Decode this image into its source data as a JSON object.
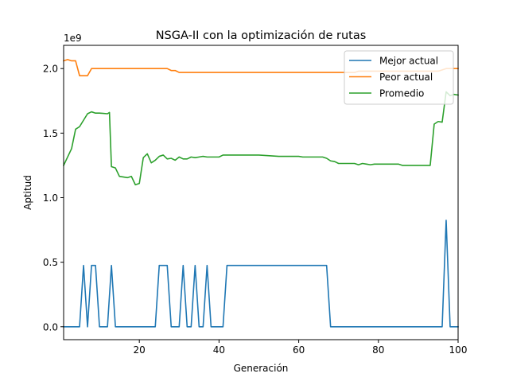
{
  "chart_data": {
    "type": "line",
    "title": "NSGA-II con la optimización de rutas",
    "xlabel": "Generación",
    "ylabel": "Aptitud",
    "offset_text": "1e9",
    "xlim": [
      1,
      100
    ],
    "ylim": [
      -0.1,
      2.18
    ],
    "x_ticks": [
      20,
      40,
      60,
      80,
      100
    ],
    "x_tick_labels": [
      "20",
      "40",
      "60",
      "80",
      "100"
    ],
    "y_ticks": [
      0.0,
      0.5,
      1.0,
      1.5,
      2.0
    ],
    "y_tick_labels": [
      "0.0",
      "0.5",
      "1.0",
      "1.5",
      "2.0"
    ],
    "grid": false,
    "legend_position": "upper-right",
    "series": [
      {
        "name": "Mejor actual",
        "color": "#1f77b4",
        "points": [
          [
            1,
            0
          ],
          [
            5,
            0
          ],
          [
            6,
            0.475
          ],
          [
            7,
            0
          ],
          [
            8,
            0.475
          ],
          [
            9,
            0.475
          ],
          [
            10,
            0
          ],
          [
            12,
            0
          ],
          [
            13,
            0.475
          ],
          [
            14,
            0
          ],
          [
            19,
            0
          ],
          [
            20,
            0
          ],
          [
            24,
            0
          ],
          [
            25,
            0.475
          ],
          [
            27,
            0.475
          ],
          [
            28,
            0
          ],
          [
            30,
            0
          ],
          [
            31,
            0.475
          ],
          [
            32,
            0
          ],
          [
            33,
            0
          ],
          [
            34,
            0.475
          ],
          [
            35,
            0
          ],
          [
            36,
            0
          ],
          [
            37,
            0.475
          ],
          [
            38,
            0
          ],
          [
            41,
            0
          ],
          [
            42,
            0.475
          ],
          [
            67,
            0.475
          ],
          [
            68,
            0
          ],
          [
            94,
            0
          ],
          [
            96,
            0
          ],
          [
            97,
            0.825
          ],
          [
            98,
            0
          ],
          [
            100,
            0
          ]
        ]
      },
      {
        "name": "Peor actual",
        "color": "#ff7f0e",
        "points": [
          [
            1,
            2.06
          ],
          [
            2,
            2.07
          ],
          [
            3,
            2.06
          ],
          [
            4,
            2.06
          ],
          [
            5,
            1.945
          ],
          [
            7,
            1.945
          ],
          [
            8,
            2.0
          ],
          [
            27,
            2.0
          ],
          [
            28,
            1.985
          ],
          [
            29,
            1.985
          ],
          [
            30,
            1.97
          ],
          [
            74,
            1.97
          ],
          [
            75,
            1.98
          ],
          [
            80,
            1.98
          ],
          [
            90,
            1.98
          ],
          [
            95,
            1.98
          ],
          [
            96,
            1.99
          ],
          [
            97,
            2.0
          ],
          [
            100,
            2.0
          ]
        ]
      },
      {
        "name": "Promedio",
        "color": "#2ca02c",
        "points": [
          [
            1,
            1.25
          ],
          [
            3,
            1.38
          ],
          [
            4,
            1.53
          ],
          [
            5,
            1.55
          ],
          [
            6,
            1.6
          ],
          [
            7,
            1.65
          ],
          [
            8,
            1.665
          ],
          [
            9,
            1.655
          ],
          [
            10,
            1.655
          ],
          [
            12,
            1.65
          ],
          [
            12.5,
            1.66
          ],
          [
            13,
            1.24
          ],
          [
            14,
            1.23
          ],
          [
            15,
            1.165
          ],
          [
            17,
            1.155
          ],
          [
            18,
            1.165
          ],
          [
            19,
            1.1
          ],
          [
            20,
            1.11
          ],
          [
            21,
            1.31
          ],
          [
            22,
            1.34
          ],
          [
            23,
            1.27
          ],
          [
            24,
            1.29
          ],
          [
            25,
            1.32
          ],
          [
            26,
            1.33
          ],
          [
            27,
            1.3
          ],
          [
            28,
            1.305
          ],
          [
            29,
            1.29
          ],
          [
            30,
            1.315
          ],
          [
            31,
            1.3
          ],
          [
            32,
            1.3
          ],
          [
            33,
            1.315
          ],
          [
            34,
            1.31
          ],
          [
            35,
            1.315
          ],
          [
            36,
            1.32
          ],
          [
            37,
            1.315
          ],
          [
            38,
            1.315
          ],
          [
            40,
            1.315
          ],
          [
            41,
            1.33
          ],
          [
            50,
            1.33
          ],
          [
            55,
            1.32
          ],
          [
            60,
            1.32
          ],
          [
            61,
            1.315
          ],
          [
            66,
            1.315
          ],
          [
            67,
            1.305
          ],
          [
            68,
            1.285
          ],
          [
            69,
            1.28
          ],
          [
            70,
            1.265
          ],
          [
            74,
            1.265
          ],
          [
            75,
            1.255
          ],
          [
            76,
            1.265
          ],
          [
            77,
            1.26
          ],
          [
            78,
            1.255
          ],
          [
            79,
            1.26
          ],
          [
            85,
            1.26
          ],
          [
            86,
            1.25
          ],
          [
            93,
            1.25
          ],
          [
            94,
            1.57
          ],
          [
            95,
            1.59
          ],
          [
            96,
            1.585
          ],
          [
            97,
            1.82
          ],
          [
            98,
            1.79
          ],
          [
            99,
            1.8
          ],
          [
            100,
            1.795
          ]
        ]
      }
    ]
  }
}
